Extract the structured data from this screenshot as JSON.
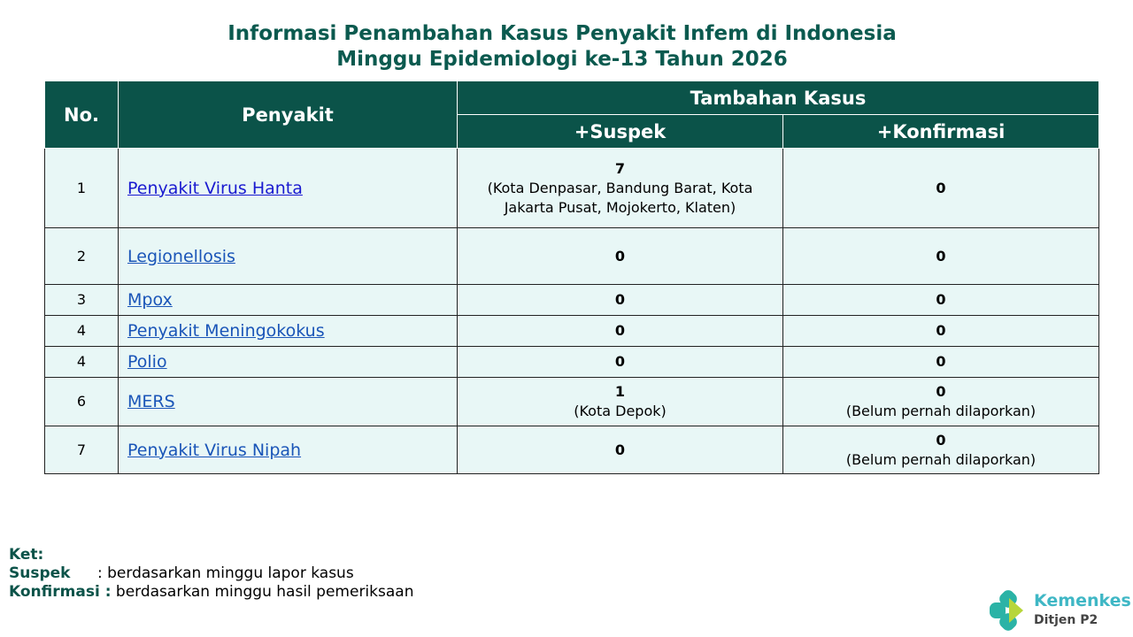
{
  "title": {
    "line1": "Informasi Penambahan Kasus Penyakit Infem di Indonesia",
    "line2": "Minggu Epidemiologi ke-13 Tahun 2026"
  },
  "table": {
    "headers": {
      "no": "No.",
      "penyakit": "Penyakit",
      "group": "Tambahan Kasus",
      "suspek": "+Suspek",
      "konfirmasi": "+Konfirmasi"
    },
    "rows": [
      {
        "no": "1",
        "penyakit": "Penyakit Virus Hanta",
        "suspek": "7",
        "suspek_note": "(Kota Denpasar, Bandung Barat, Kota Jakarta Pusat, Mojokerto, Klaten)",
        "konfirmasi": "0",
        "konfirmasi_note": ""
      },
      {
        "no": "2",
        "penyakit": "Legionellosis",
        "suspek": "0",
        "suspek_note": "",
        "konfirmasi": "0",
        "konfirmasi_note": ""
      },
      {
        "no": "3",
        "penyakit": "Mpox",
        "suspek": "0",
        "suspek_note": "",
        "konfirmasi": "0",
        "konfirmasi_note": ""
      },
      {
        "no": "4",
        "penyakit": "Penyakit Meningokokus",
        "suspek": "0",
        "suspek_note": "",
        "konfirmasi": "0",
        "konfirmasi_note": ""
      },
      {
        "no": "4",
        "penyakit": "Polio",
        "suspek": "0",
        "suspek_note": "",
        "konfirmasi": "0",
        "konfirmasi_note": ""
      },
      {
        "no": "6",
        "penyakit": "MERS",
        "suspek": "1",
        "suspek_note": "(Kota Depok)",
        "konfirmasi": "0",
        "konfirmasi_note": "(Belum pernah dilaporkan)"
      },
      {
        "no": "7",
        "penyakit": "Penyakit Virus Nipah",
        "suspek": "0",
        "suspek_note": "",
        "konfirmasi": "0",
        "konfirmasi_note": "(Belum pernah dilaporkan)"
      }
    ]
  },
  "ket": {
    "label": "Ket:",
    "suspek_label": "Suspek",
    "suspek_text": ": berdasarkan minggu lapor kasus",
    "konfirmasi_label": "Konfirmasi :",
    "konfirmasi_text": " berdasarkan minggu hasil pemeriksaan"
  },
  "logo": {
    "name": "Kemenkes",
    "sub": "Ditjen P2"
  },
  "colors": {
    "header": "#0b5349",
    "body": "#e8f7f6",
    "title": "#0b5a4f",
    "link": "#1a55b8"
  }
}
